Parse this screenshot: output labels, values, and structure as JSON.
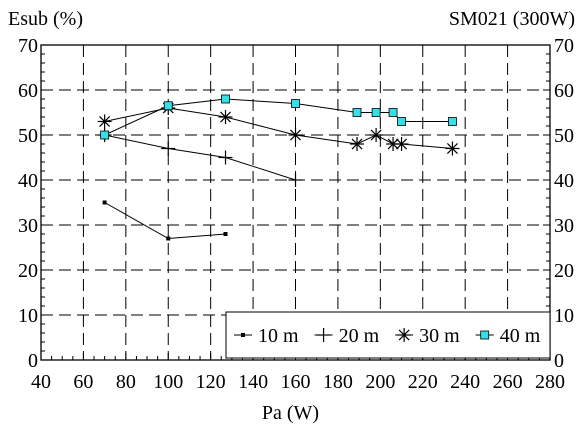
{
  "chart_data": {
    "type": "line",
    "title": "SM021 (300W)",
    "ylabel": "Esub (%)",
    "xlabel": "Pa (W)",
    "xlim": [
      40,
      280
    ],
    "ylim": [
      0,
      70
    ],
    "x_ticks": [
      40,
      60,
      80,
      100,
      120,
      140,
      160,
      180,
      200,
      220,
      240,
      260,
      280
    ],
    "y_ticks": [
      0,
      10,
      20,
      30,
      40,
      50,
      60,
      70
    ],
    "grid": true,
    "grid_style": "dashed",
    "right_axis_mirrored": true,
    "legend_position": "bottom-right",
    "series": [
      {
        "name": "10 m",
        "marker": "small-square",
        "color": "#000000",
        "x": [
          70,
          100,
          127
        ],
        "y": [
          35,
          27,
          28
        ]
      },
      {
        "name": "20 m",
        "marker": "plus",
        "color": "#000000",
        "x": [
          70,
          100,
          127,
          160
        ],
        "y": [
          50,
          47,
          45,
          40
        ]
      },
      {
        "name": "30 m",
        "marker": "asterisk",
        "color": "#000000",
        "x": [
          70,
          100,
          127,
          160,
          189,
          198,
          206,
          210,
          234
        ],
        "y": [
          53,
          56,
          54,
          50,
          48,
          50,
          48,
          48,
          47
        ]
      },
      {
        "name": "40 m",
        "marker": "square",
        "color": "#000000",
        "marker_fill": "#33e0e8",
        "x": [
          70,
          100,
          127,
          160,
          189,
          198,
          206,
          210,
          234
        ],
        "y": [
          50,
          56.5,
          58,
          57,
          55,
          55,
          55,
          53,
          53
        ]
      }
    ]
  }
}
